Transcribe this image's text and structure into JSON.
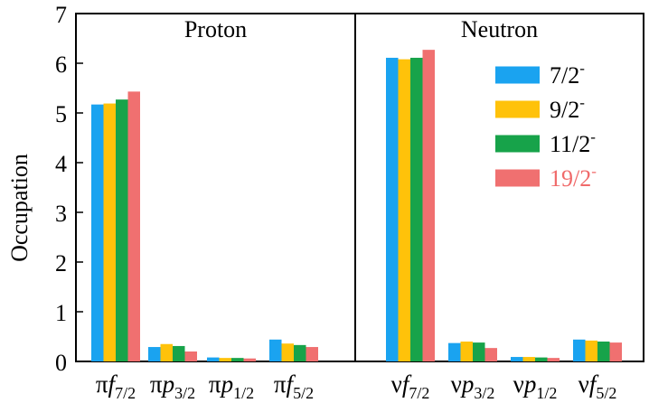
{
  "chart_data": {
    "type": "bar",
    "ylabel": "Occupation",
    "ylim": [
      0,
      7
    ],
    "yticks": [
      0,
      1,
      2,
      3,
      4,
      5,
      6,
      7
    ],
    "grid": false,
    "legend_placement": "top-right of Neutron panel",
    "panels": [
      {
        "title": "Proton",
        "categories": [
          {
            "prefix": "π",
            "orbital": "f",
            "sub": "7/2"
          },
          {
            "prefix": "π",
            "orbital": "p",
            "sub": "3/2"
          },
          {
            "prefix": "π",
            "orbital": "p",
            "sub": "1/2"
          },
          {
            "prefix": "π",
            "orbital": "f",
            "sub": "5/2"
          }
        ],
        "series_values": [
          [
            5.17,
            0.29,
            0.08,
            0.44
          ],
          [
            5.19,
            0.35,
            0.07,
            0.36
          ],
          [
            5.27,
            0.31,
            0.07,
            0.33
          ],
          [
            5.43,
            0.2,
            0.06,
            0.29
          ]
        ]
      },
      {
        "title": "Neutron",
        "categories": [
          {
            "prefix": "ν",
            "orbital": "f",
            "sub": "7/2"
          },
          {
            "prefix": "ν",
            "orbital": "p",
            "sub": "3/2"
          },
          {
            "prefix": "ν",
            "orbital": "p",
            "sub": "1/2"
          },
          {
            "prefix": "ν",
            "orbital": "f",
            "sub": "5/2"
          }
        ],
        "series_values": [
          [
            6.11,
            0.37,
            0.09,
            0.44
          ],
          [
            6.08,
            0.4,
            0.09,
            0.42
          ],
          [
            6.11,
            0.38,
            0.08,
            0.4
          ],
          [
            6.27,
            0.27,
            0.07,
            0.38
          ]
        ]
      }
    ],
    "series": [
      {
        "name": "7/2",
        "sup": "-",
        "color": "#1aa3f0",
        "label_color": "#000000"
      },
      {
        "name": "9/2",
        "sup": "-",
        "color": "#ffc20a",
        "label_color": "#000000"
      },
      {
        "name": "11/2",
        "sup": "-",
        "color": "#17a34a",
        "label_color": "#000000"
      },
      {
        "name": "19/2",
        "sup": "-",
        "color": "#f07070",
        "label_color": "#f06a6a"
      }
    ]
  }
}
